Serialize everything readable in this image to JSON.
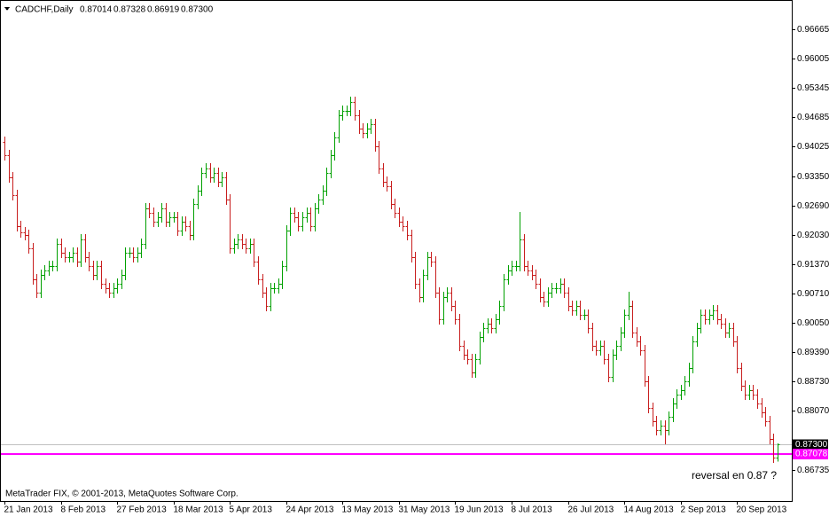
{
  "chart_data": {
    "type": "ohlc",
    "title": "CADCHF,Daily",
    "title_values": [
      "0.87014",
      "0.87328",
      "0.86919",
      "0.87300"
    ],
    "categories": [
      "21 Jan 2013",
      null,
      null,
      null,
      null,
      null,
      null,
      null,
      null,
      null,
      null,
      null,
      null,
      null,
      "8 Feb 2013",
      null,
      null,
      null,
      null,
      null,
      null,
      null,
      null,
      null,
      null,
      null,
      null,
      null,
      "27 Feb 2013",
      null,
      null,
      null,
      null,
      null,
      null,
      null,
      null,
      null,
      null,
      null,
      null,
      null,
      "18 Mar 2013",
      null,
      null,
      null,
      null,
      null,
      null,
      null,
      null,
      null,
      null,
      null,
      null,
      null,
      "5 Apr 2013",
      null,
      null,
      null,
      null,
      null,
      null,
      null,
      null,
      null,
      null,
      null,
      null,
      null,
      "24 Apr 2013",
      null,
      null,
      null,
      null,
      null,
      null,
      null,
      null,
      null,
      null,
      null,
      null,
      null,
      "13 May 2013",
      null,
      null,
      null,
      null,
      null,
      null,
      null,
      null,
      null,
      null,
      null,
      null,
      null,
      "31 May 2013",
      null,
      null,
      null,
      null,
      null,
      null,
      null,
      null,
      null,
      null,
      null,
      null,
      null,
      "19 Jun 2013",
      null,
      null,
      null,
      null,
      null,
      null,
      null,
      null,
      null,
      null,
      null,
      null,
      null,
      "8 Jul 2013",
      null,
      null,
      null,
      null,
      null,
      null,
      null,
      null,
      null,
      null,
      null,
      null,
      null,
      "26 Jul 2013",
      null,
      null,
      null,
      null,
      null,
      null,
      null,
      null,
      null,
      null,
      null,
      null,
      null,
      "14 Aug 2013",
      null,
      null,
      null,
      null,
      null,
      null,
      null,
      null,
      null,
      null,
      null,
      null,
      null,
      "2 Sep 2013",
      null,
      null,
      null,
      null,
      null,
      null,
      null,
      null,
      null,
      null,
      null,
      null,
      null,
      "20 Sep 2013",
      null,
      null,
      null,
      null,
      null,
      null,
      null,
      null,
      null,
      null
    ],
    "open": [
      0.9413,
      0.9383,
      0.9333,
      0.9293,
      0.9223,
      0.9209,
      0.9203,
      0.9173,
      0.9103,
      0.9073,
      0.9113,
      0.9123,
      0.9133,
      0.9133,
      0.9183,
      0.9163,
      0.9153,
      0.9153,
      0.9163,
      0.9143,
      0.9193,
      0.9153,
      0.9133,
      0.9113,
      0.9133,
      0.9093,
      0.9083,
      0.9073,
      0.9083,
      0.9093,
      0.9113,
      0.9163,
      0.9163,
      0.9153,
      0.9163,
      0.9183,
      0.9263,
      0.9253,
      0.9233,
      0.9243,
      0.9263,
      0.9233,
      0.9243,
      0.9243,
      0.9213,
      0.9233,
      0.9223,
      0.9203,
      0.9273,
      0.9303,
      0.9343,
      0.9353,
      0.9333,
      0.9343,
      0.9323,
      0.9333,
      0.9283,
      0.9173,
      0.9183,
      0.9193,
      0.9183,
      0.9173,
      0.9183,
      0.9143,
      0.9103,
      0.9073,
      0.9043,
      0.9083,
      0.9083,
      0.9093,
      0.9133,
      0.9213,
      0.9253,
      0.9243,
      0.9223,
      0.9243,
      0.9253,
      0.9223,
      0.9263,
      0.9283,
      0.9303,
      0.9343,
      0.9383,
      0.9423,
      0.9473,
      0.9483,
      0.9483,
      0.9503,
      0.9473,
      0.9443,
      0.9433,
      0.9443,
      0.9453,
      0.9403,
      0.9353,
      0.9323,
      0.9313,
      0.9273,
      0.9253,
      0.9233,
      0.9223,
      0.9203,
      0.9153,
      0.9093,
      0.9063,
      0.9113,
      0.9153,
      0.9143,
      0.9073,
      0.9013,
      0.9063,
      0.9073,
      0.9043,
      0.9013,
      0.8953,
      0.8933,
      0.8923,
      0.8893,
      0.8923,
      0.8973,
      0.8993,
      0.9003,
      0.8993,
      0.9013,
      0.9043,
      0.9103,
      0.9123,
      0.9133,
      0.9133,
      0.9193,
      0.9133,
      0.9123,
      0.9113,
      0.9093,
      0.9063,
      0.9053,
      0.9073,
      0.9083,
      0.9083,
      0.9093,
      0.9073,
      0.9043,
      0.9033,
      0.9043,
      0.9023,
      0.9023,
      0.8993,
      0.8953,
      0.8943,
      0.8953,
      0.8923,
      0.8883,
      0.8933,
      0.8953,
      0.8983,
      0.9023,
      0.9043,
      0.8983,
      0.8963,
      0.8943,
      0.8873,
      0.8813,
      0.8783,
      0.8763,
      0.8773,
      0.8763,
      0.8793,
      0.8823,
      0.8843,
      0.8853,
      0.8873,
      0.8903,
      0.8963,
      0.8993,
      0.9023,
      0.9013,
      0.9023,
      0.9033,
      0.9013,
      0.9003,
      0.8983,
      0.8993,
      0.8963,
      0.8903,
      0.8863,
      0.8843,
      0.8853,
      0.8843,
      0.8823,
      0.8803,
      0.8783,
      0.8743,
      0.87014
    ],
    "high": [
      0.9425,
      0.9395,
      0.9345,
      0.9305,
      0.9235,
      0.9221,
      0.9215,
      0.9185,
      0.9115,
      0.9125,
      0.9135,
      0.9145,
      0.9145,
      0.9195,
      0.9195,
      0.9175,
      0.9165,
      0.9175,
      0.9175,
      0.9205,
      0.9205,
      0.9165,
      0.9145,
      0.9145,
      0.9145,
      0.9105,
      0.9095,
      0.9095,
      0.9105,
      0.9125,
      0.9175,
      0.9175,
      0.9175,
      0.9175,
      0.9195,
      0.9275,
      0.9275,
      0.9265,
      0.9255,
      0.9275,
      0.9275,
      0.9255,
      0.9255,
      0.9255,
      0.9245,
      0.9245,
      0.9235,
      0.9285,
      0.9315,
      0.9355,
      0.9365,
      0.9365,
      0.9355,
      0.9355,
      0.9345,
      0.9345,
      0.9295,
      0.9195,
      0.9205,
      0.9205,
      0.9195,
      0.9195,
      0.9195,
      0.9155,
      0.9115,
      0.9085,
      0.9095,
      0.9095,
      0.9105,
      0.9145,
      0.9225,
      0.9265,
      0.9265,
      0.9255,
      0.9255,
      0.9265,
      0.9265,
      0.9275,
      0.9295,
      0.9315,
      0.9355,
      0.9395,
      0.9435,
      0.9485,
      0.9495,
      0.9495,
      0.9515,
      0.9515,
      0.9485,
      0.9455,
      0.9455,
      0.9465,
      0.9465,
      0.9415,
      0.9365,
      0.9335,
      0.9325,
      0.9285,
      0.9265,
      0.9245,
      0.9235,
      0.9215,
      0.9165,
      0.9105,
      0.9125,
      0.9165,
      0.9165,
      0.9155,
      0.9085,
      0.9075,
      0.9085,
      0.9085,
      0.9055,
      0.9025,
      0.8965,
      0.8945,
      0.8935,
      0.8935,
      0.8985,
      0.9005,
      0.9015,
      0.9015,
      0.9025,
      0.9055,
      0.9115,
      0.9135,
      0.9145,
      0.9145,
      0.9255,
      0.9205,
      0.9145,
      0.9135,
      0.9125,
      0.9105,
      0.9075,
      0.9085,
      0.9095,
      0.9095,
      0.9105,
      0.9105,
      0.9085,
      0.9055,
      0.9055,
      0.9055,
      0.9035,
      0.9035,
      0.9005,
      0.8965,
      0.8965,
      0.8965,
      0.8935,
      0.8945,
      0.8965,
      0.8995,
      0.9035,
      0.9075,
      0.9055,
      0.8995,
      0.8975,
      0.8955,
      0.8885,
      0.8825,
      0.8795,
      0.8785,
      0.8785,
      0.8805,
      0.8835,
      0.8855,
      0.8865,
      0.8885,
      0.8915,
      0.8975,
      0.9005,
      0.9035,
      0.9035,
      0.9035,
      0.9045,
      0.9045,
      0.9025,
      0.9015,
      0.9005,
      0.9005,
      0.8975,
      0.8915,
      0.8875,
      0.8865,
      0.8865,
      0.8855,
      0.8835,
      0.8815,
      0.8795,
      0.8755,
      0.87328
    ],
    "low": [
      0.9371,
      0.9321,
      0.9281,
      0.9211,
      0.9197,
      0.9191,
      0.9161,
      0.9091,
      0.9061,
      0.9061,
      0.9101,
      0.9111,
      0.9121,
      0.9121,
      0.9151,
      0.9141,
      0.9141,
      0.9141,
      0.9131,
      0.9131,
      0.9141,
      0.9121,
      0.9101,
      0.9101,
      0.9081,
      0.9071,
      0.9061,
      0.9061,
      0.9071,
      0.9081,
      0.9101,
      0.9151,
      0.9141,
      0.9141,
      0.9151,
      0.9171,
      0.9241,
      0.9221,
      0.9221,
      0.9231,
      0.9221,
      0.9221,
      0.9231,
      0.9201,
      0.9201,
      0.9211,
      0.9191,
      0.9191,
      0.9261,
      0.9291,
      0.9331,
      0.9321,
      0.9321,
      0.9311,
      0.9311,
      0.9271,
      0.9161,
      0.9161,
      0.9171,
      0.9171,
      0.9161,
      0.9161,
      0.9131,
      0.9091,
      0.9061,
      0.9031,
      0.9031,
      0.9071,
      0.9071,
      0.9081,
      0.9121,
      0.9201,
      0.9231,
      0.9211,
      0.9211,
      0.9231,
      0.9211,
      0.9211,
      0.9251,
      0.9271,
      0.9291,
      0.9331,
      0.9371,
      0.9411,
      0.9461,
      0.9471,
      0.9471,
      0.9461,
      0.9431,
      0.9421,
      0.9421,
      0.9431,
      0.9391,
      0.9341,
      0.9311,
      0.9301,
      0.9261,
      0.9241,
      0.9221,
      0.9211,
      0.9191,
      0.9141,
      0.9081,
      0.9051,
      0.9051,
      0.9101,
      0.9131,
      0.9061,
      0.9001,
      0.9001,
      0.9051,
      0.9031,
      0.9001,
      0.8941,
      0.8921,
      0.8911,
      0.8881,
      0.8881,
      0.8911,
      0.8961,
      0.8981,
      0.8981,
      0.8981,
      0.9001,
      0.9031,
      0.9091,
      0.9111,
      0.9121,
      0.9121,
      0.9121,
      0.9111,
      0.9101,
      0.9081,
      0.9051,
      0.9041,
      0.9041,
      0.9061,
      0.9071,
      0.9071,
      0.9061,
      0.9031,
      0.9021,
      0.9021,
      0.9011,
      0.9011,
      0.8981,
      0.8941,
      0.8931,
      0.8931,
      0.8911,
      0.8871,
      0.8871,
      0.8921,
      0.8941,
      0.8971,
      0.9011,
      0.8971,
      0.8951,
      0.8931,
      0.8861,
      0.8801,
      0.8771,
      0.8751,
      0.8751,
      0.8731,
      0.8751,
      0.8781,
      0.8811,
      0.8831,
      0.8841,
      0.8861,
      0.8891,
      0.8951,
      0.8981,
      0.9001,
      0.9001,
      0.9011,
      0.9001,
      0.8991,
      0.8971,
      0.8971,
      0.8951,
      0.8891,
      0.8851,
      0.8831,
      0.8831,
      0.8831,
      0.8811,
      0.8791,
      0.8771,
      0.8731,
      0.8689,
      0.86919
    ],
    "close": [
      0.9383,
      0.9333,
      0.9293,
      0.9223,
      0.9209,
      0.9203,
      0.9173,
      0.9103,
      0.9073,
      0.9113,
      0.9123,
      0.9133,
      0.9133,
      0.9183,
      0.9163,
      0.9153,
      0.9153,
      0.9163,
      0.9143,
      0.9193,
      0.9153,
      0.9133,
      0.9113,
      0.9133,
      0.9093,
      0.9083,
      0.9073,
      0.9083,
      0.9093,
      0.9113,
      0.9163,
      0.9163,
      0.9153,
      0.9163,
      0.9183,
      0.9263,
      0.9253,
      0.9233,
      0.9243,
      0.9263,
      0.9233,
      0.9243,
      0.9243,
      0.9213,
      0.9233,
      0.9223,
      0.9203,
      0.9273,
      0.9303,
      0.9343,
      0.9353,
      0.9333,
      0.9343,
      0.9323,
      0.9333,
      0.9283,
      0.9173,
      0.9183,
      0.9193,
      0.9183,
      0.9173,
      0.9183,
      0.9143,
      0.9103,
      0.9073,
      0.9043,
      0.9083,
      0.9083,
      0.9093,
      0.9133,
      0.9213,
      0.9253,
      0.9243,
      0.9223,
      0.9243,
      0.9253,
      0.9223,
      0.9263,
      0.9283,
      0.9303,
      0.9343,
      0.9383,
      0.9423,
      0.9473,
      0.9483,
      0.9483,
      0.9503,
      0.9473,
      0.9443,
      0.9433,
      0.9443,
      0.9453,
      0.9403,
      0.9353,
      0.9323,
      0.9313,
      0.9273,
      0.9253,
      0.9233,
      0.9223,
      0.9203,
      0.9153,
      0.9093,
      0.9063,
      0.9113,
      0.9153,
      0.9143,
      0.9073,
      0.9013,
      0.9063,
      0.9073,
      0.9043,
      0.9013,
      0.8953,
      0.8933,
      0.8923,
      0.8893,
      0.8923,
      0.8973,
      0.8993,
      0.9003,
      0.8993,
      0.9013,
      0.9043,
      0.9103,
      0.9123,
      0.9133,
      0.9133,
      0.9193,
      0.9133,
      0.9123,
      0.9113,
      0.9093,
      0.9063,
      0.9053,
      0.9073,
      0.9083,
      0.9083,
      0.9093,
      0.9073,
      0.9043,
      0.9033,
      0.9043,
      0.9023,
      0.9023,
      0.8993,
      0.8953,
      0.8943,
      0.8953,
      0.8923,
      0.8883,
      0.8933,
      0.8953,
      0.8983,
      0.9023,
      0.9043,
      0.8983,
      0.8963,
      0.8943,
      0.8873,
      0.8813,
      0.8783,
      0.8763,
      0.8773,
      0.8763,
      0.8793,
      0.8823,
      0.8843,
      0.8853,
      0.8873,
      0.8903,
      0.8963,
      0.8993,
      0.9023,
      0.9013,
      0.9023,
      0.9033,
      0.9013,
      0.9003,
      0.8983,
      0.8993,
      0.8963,
      0.8903,
      0.8863,
      0.8843,
      0.8853,
      0.8843,
      0.8823,
      0.8803,
      0.8783,
      0.8743,
      0.8701,
      0.873
    ],
    "up_color": "#00a000",
    "down_color": "#c81e1e",
    "ylim": [
      0.86025,
      0.97325
    ],
    "yticks": [
      0.96665,
      0.96005,
      0.95345,
      0.94685,
      0.94025,
      {
        "value": 0.9335,
        "label": "0.93350"
      },
      {
        "value": 0.9269,
        "label": "0.92690"
      },
      {
        "value": 0.9203,
        "label": "0.92030"
      },
      {
        "value": 0.9137,
        "label": "0.91370"
      },
      {
        "value": 0.9071,
        "label": "0.90710"
      },
      {
        "value": 0.9005,
        "label": "0.90050"
      },
      {
        "value": 0.8939,
        "label": "0.89390"
      },
      {
        "value": 0.8873,
        "label": "0.88730"
      },
      {
        "value": 0.8807,
        "label": "0.88070"
      },
      0.86735
    ],
    "price_line": {
      "value": 0.873,
      "label": "0.87300",
      "color": "#c0c0c0"
    },
    "hline": {
      "value": 0.87078,
      "label": "0.87078",
      "color": "#ff00ff"
    },
    "annotation": "reversal en 0.87 ?",
    "footer": "MetaTrader FIX, © 2001-2013, MetaQuotes Software Corp."
  }
}
